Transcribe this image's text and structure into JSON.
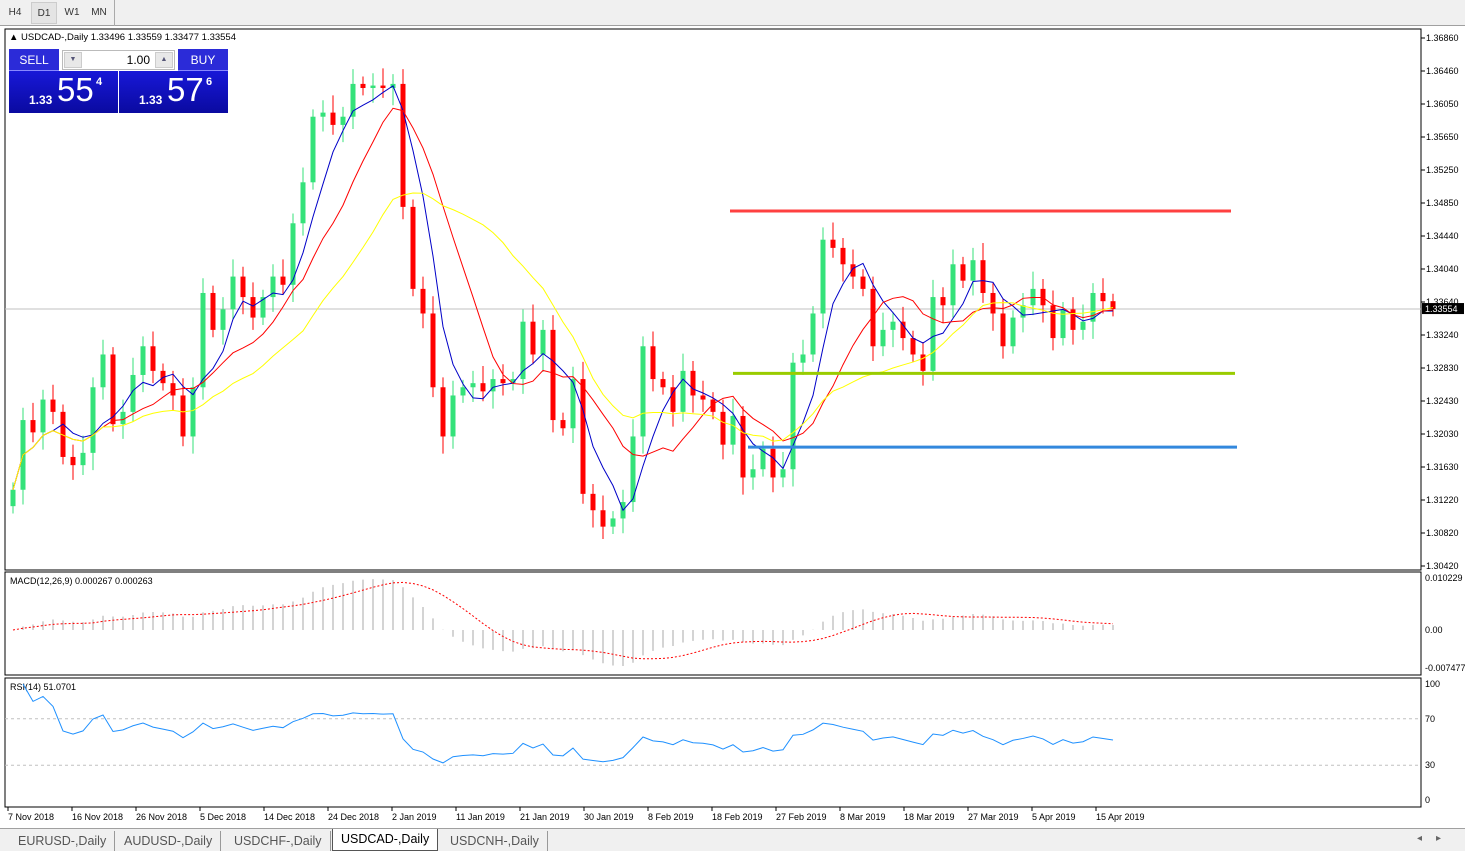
{
  "toolbar": {
    "timeframes": [
      "H4",
      "D1",
      "W1",
      "MN"
    ],
    "active": "D1"
  },
  "chart_title": "USDCAD-,Daily  1.33496 1.33559 1.33477 1.33554",
  "trade_panel": {
    "sell_label": "SELL",
    "buy_label": "BUY",
    "lot": "1.00",
    "sell_prefix": "1.33",
    "sell_big": "55",
    "sell_sup": "4",
    "buy_prefix": "1.33",
    "buy_big": "57",
    "buy_sup": "6"
  },
  "colors": {
    "bull": "#34e27a",
    "bear": "#ff0000",
    "ma_fast": "#0000c8",
    "ma_mid": "#ff0000",
    "ma_slow": "#ffff00",
    "level_resistance": "#ff4040",
    "level_support": "#99cc00",
    "level_low": "#3388dd",
    "macd_hist": "#a8a8a8",
    "macd_signal": "#ff0000",
    "rsi": "#1e90ff"
  },
  "chart_data": {
    "type": "candlestick",
    "symbol": "USDCAD-",
    "timeframe": "Daily",
    "ylim": [
      1.3042,
      1.3686
    ],
    "y_ticks": [
      "1.36860",
      "1.36460",
      "1.36050",
      "1.35650",
      "1.35250",
      "1.34850",
      "1.34440",
      "1.34040",
      "1.33640",
      "1.33240",
      "1.32830",
      "1.32430",
      "1.32030",
      "1.31630",
      "1.31220",
      "1.30820",
      "1.30420"
    ],
    "current_price": "1.33554",
    "x_ticks": [
      "7 Nov 2018",
      "16 Nov 2018",
      "26 Nov 2018",
      "5 Dec 2018",
      "14 Dec 2018",
      "24 Dec 2018",
      "2 Jan 2019",
      "11 Jan 2019",
      "21 Jan 2019",
      "30 Jan 2019",
      "8 Feb 2019",
      "18 Feb 2019",
      "27 Feb 2019",
      "8 Mar 2019",
      "18 Mar 2019",
      "27 Mar 2019",
      "5 Apr 2019",
      "15 Apr 2019"
    ],
    "closes": [
      1.3135,
      1.322,
      1.3205,
      1.3245,
      1.323,
      1.3175,
      1.3165,
      1.318,
      1.326,
      1.33,
      1.3215,
      1.323,
      1.3275,
      1.331,
      1.328,
      1.3265,
      1.325,
      1.32,
      1.326,
      1.3375,
      1.333,
      1.3355,
      1.3395,
      1.337,
      1.3345,
      1.337,
      1.3395,
      1.3385,
      1.346,
      1.351,
      1.359,
      1.3595,
      1.358,
      1.359,
      1.363,
      1.3625,
      1.3628,
      1.3625,
      1.363,
      1.348,
      1.338,
      1.335,
      1.326,
      1.32,
      1.325,
      1.326,
      1.3265,
      1.3255,
      1.327,
      1.3265,
      1.327,
      1.334,
      1.33,
      1.333,
      1.322,
      1.321,
      1.327,
      1.313,
      1.311,
      1.309,
      1.31,
      1.312,
      1.32,
      1.331,
      1.327,
      1.326,
      1.323,
      1.328,
      1.325,
      1.3245,
      1.323,
      1.319,
      1.3225,
      1.315,
      1.316,
      1.3185,
      1.315,
      1.316,
      1.329,
      1.33,
      1.335,
      1.344,
      1.343,
      1.341,
      1.3395,
      1.338,
      1.331,
      1.333,
      1.334,
      1.332,
      1.33,
      1.328,
      1.337,
      1.336,
      1.341,
      1.339,
      1.3415,
      1.3375,
      1.335,
      1.331,
      1.3345,
      1.336,
      1.338,
      1.336,
      1.332,
      1.3355,
      1.333,
      1.334,
      1.3375,
      1.3365,
      1.33554
    ],
    "horizontal_levels": [
      1.3475,
      1.3277,
      1.3187
    ],
    "indicators": {
      "macd": {
        "label": "MACD(12,26,9) 0.000267 0.000263",
        "ylim": [
          -0.007477,
          0.010229
        ],
        "ticks": [
          "0.010229",
          "0.00",
          "-0.007477"
        ]
      },
      "rsi": {
        "label": "RSI(14) 51.0701",
        "ticks": [
          "100",
          "70",
          "30",
          "0"
        ],
        "levels": [
          70,
          30
        ]
      }
    }
  },
  "tabs": [
    "EURUSD-,Daily",
    "AUDUSD-,Daily",
    "USDCHF-,Daily",
    "USDCAD-,Daily",
    "USDCNH-,Daily"
  ],
  "active_tab": "USDCAD-,Daily"
}
